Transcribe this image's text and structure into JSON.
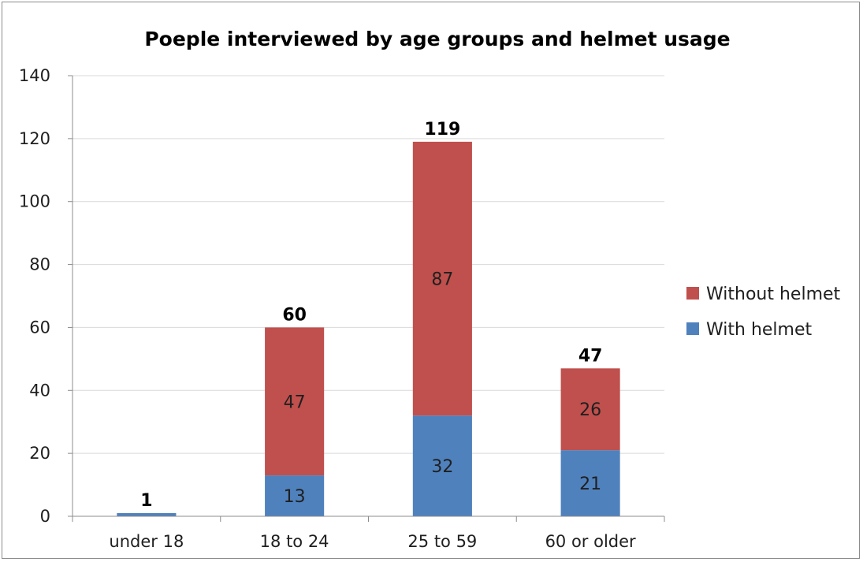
{
  "chart_data": {
    "type": "bar",
    "stacked": true,
    "title": "Poeple interviewed by age groups and helmet usage",
    "categories": [
      "under 18",
      "18 to 24",
      "25 to 59",
      "60 or older"
    ],
    "series": [
      {
        "name": "With helmet",
        "color": "#4f81bd",
        "values": [
          1,
          13,
          32,
          21
        ]
      },
      {
        "name": "Without helmet",
        "color": "#c0504d",
        "values": [
          0,
          47,
          87,
          26
        ]
      }
    ],
    "segment_labels": [
      [
        "",
        "13",
        "32",
        "21"
      ],
      [
        "",
        "47",
        "87",
        "26"
      ]
    ],
    "totals": [
      1,
      60,
      119,
      47
    ],
    "ylim": [
      0,
      140
    ],
    "yticks": [
      "0",
      "20",
      "40",
      "60",
      "80",
      "100",
      "120",
      "140"
    ],
    "grid": true,
    "legend_position": "right",
    "legend": [
      "Without helmet",
      "With helmet"
    ]
  }
}
